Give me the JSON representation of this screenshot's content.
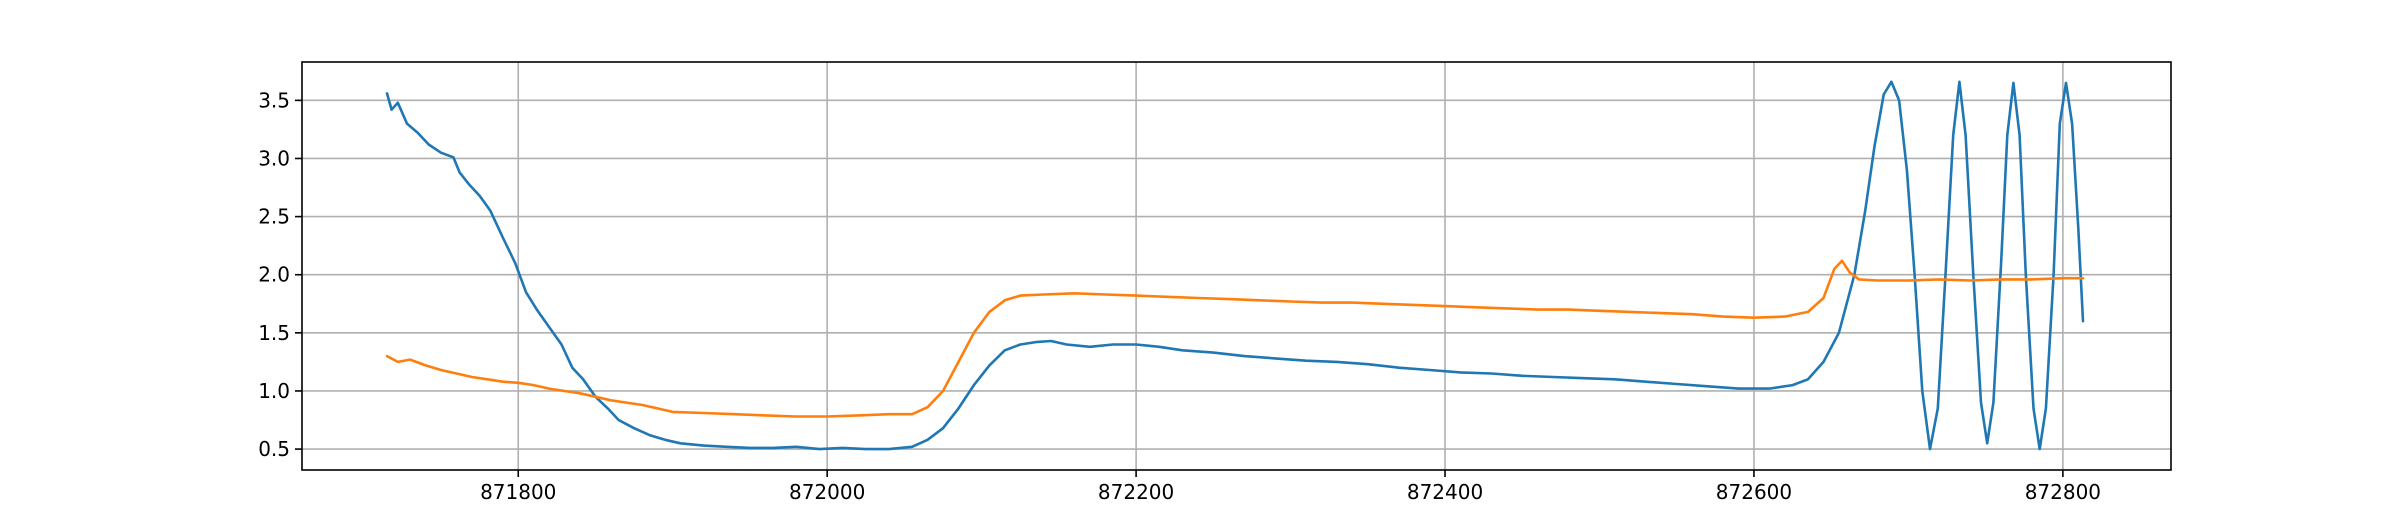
{
  "chart_data": {
    "type": "line",
    "title": "",
    "xlabel": "",
    "ylabel": "",
    "xlim": [
      871660,
      872870
    ],
    "ylim": [
      0.32,
      3.83
    ],
    "grid": true,
    "legend": "none",
    "x_ticks": [
      871800,
      872000,
      872200,
      872400,
      872600,
      872800
    ],
    "x_tick_labels": [
      "871800",
      "872000",
      "872200",
      "872400",
      "872600",
      "872800"
    ],
    "y_ticks": [
      0.5,
      1.0,
      1.5,
      2.0,
      2.5,
      3.0,
      3.5
    ],
    "y_tick_labels": [
      "0.5",
      "1.0",
      "1.5",
      "2.0",
      "2.5",
      "3.0",
      "3.5"
    ],
    "series": [
      {
        "color": "#1f77b4",
        "points": [
          [
            871715,
            3.56
          ],
          [
            871718,
            3.42
          ],
          [
            871722,
            3.48
          ],
          [
            871728,
            3.3
          ],
          [
            871735,
            3.22
          ],
          [
            871742,
            3.12
          ],
          [
            871750,
            3.05
          ],
          [
            871758,
            3.01
          ],
          [
            871762,
            2.88
          ],
          [
            871768,
            2.78
          ],
          [
            871775,
            2.68
          ],
          [
            871782,
            2.55
          ],
          [
            871790,
            2.32
          ],
          [
            871798,
            2.1
          ],
          [
            871805,
            1.85
          ],
          [
            871812,
            1.7
          ],
          [
            871820,
            1.55
          ],
          [
            871828,
            1.4
          ],
          [
            871835,
            1.2
          ],
          [
            871842,
            1.1
          ],
          [
            871850,
            0.95
          ],
          [
            871858,
            0.85
          ],
          [
            871865,
            0.75
          ],
          [
            871875,
            0.68
          ],
          [
            871885,
            0.62
          ],
          [
            871895,
            0.58
          ],
          [
            871905,
            0.55
          ],
          [
            871920,
            0.53
          ],
          [
            871935,
            0.52
          ],
          [
            871950,
            0.51
          ],
          [
            871965,
            0.51
          ],
          [
            871980,
            0.52
          ],
          [
            871995,
            0.5
          ],
          [
            872010,
            0.51
          ],
          [
            872025,
            0.5
          ],
          [
            872040,
            0.5
          ],
          [
            872055,
            0.52
          ],
          [
            872065,
            0.58
          ],
          [
            872075,
            0.68
          ],
          [
            872085,
            0.85
          ],
          [
            872095,
            1.05
          ],
          [
            872105,
            1.22
          ],
          [
            872115,
            1.35
          ],
          [
            872125,
            1.4
          ],
          [
            872135,
            1.42
          ],
          [
            872145,
            1.43
          ],
          [
            872155,
            1.4
          ],
          [
            872170,
            1.38
          ],
          [
            872185,
            1.4
          ],
          [
            872200,
            1.4
          ],
          [
            872215,
            1.38
          ],
          [
            872230,
            1.35
          ],
          [
            872250,
            1.33
          ],
          [
            872270,
            1.3
          ],
          [
            872290,
            1.28
          ],
          [
            872310,
            1.26
          ],
          [
            872330,
            1.25
          ],
          [
            872350,
            1.23
          ],
          [
            872370,
            1.2
          ],
          [
            872390,
            1.18
          ],
          [
            872410,
            1.16
          ],
          [
            872430,
            1.15
          ],
          [
            872450,
            1.13
          ],
          [
            872470,
            1.12
          ],
          [
            872490,
            1.11
          ],
          [
            872510,
            1.1
          ],
          [
            872530,
            1.08
          ],
          [
            872550,
            1.06
          ],
          [
            872570,
            1.04
          ],
          [
            872590,
            1.02
          ],
          [
            872610,
            1.02
          ],
          [
            872625,
            1.05
          ],
          [
            872635,
            1.1
          ],
          [
            872645,
            1.25
          ],
          [
            872655,
            1.5
          ],
          [
            872665,
            2.0
          ],
          [
            872672,
            2.55
          ],
          [
            872678,
            3.1
          ],
          [
            872684,
            3.55
          ],
          [
            872689,
            3.66
          ],
          [
            872694,
            3.5
          ],
          [
            872699,
            2.9
          ],
          [
            872704,
            2.0
          ],
          [
            872709,
            1.0
          ],
          [
            872714,
            0.5
          ],
          [
            872719,
            0.85
          ],
          [
            872724,
            2.0
          ],
          [
            872729,
            3.2
          ],
          [
            872733,
            3.66
          ],
          [
            872737,
            3.2
          ],
          [
            872742,
            2.0
          ],
          [
            872747,
            0.9
          ],
          [
            872751,
            0.55
          ],
          [
            872755,
            0.9
          ],
          [
            872760,
            2.1
          ],
          [
            872764,
            3.2
          ],
          [
            872768,
            3.65
          ],
          [
            872772,
            3.2
          ],
          [
            872776,
            2.0
          ],
          [
            872781,
            0.85
          ],
          [
            872785,
            0.5
          ],
          [
            872789,
            0.85
          ],
          [
            872794,
            2.0
          ],
          [
            872798,
            3.3
          ],
          [
            872802,
            3.65
          ],
          [
            872806,
            3.3
          ],
          [
            872810,
            2.4
          ],
          [
            872813,
            1.6
          ]
        ]
      },
      {
        "color": "#ff7f0e",
        "points": [
          [
            871715,
            1.3
          ],
          [
            871722,
            1.25
          ],
          [
            871730,
            1.27
          ],
          [
            871740,
            1.22
          ],
          [
            871750,
            1.18
          ],
          [
            871760,
            1.15
          ],
          [
            871770,
            1.12
          ],
          [
            871780,
            1.1
          ],
          [
            871790,
            1.08
          ],
          [
            871800,
            1.07
          ],
          [
            871810,
            1.05
          ],
          [
            871820,
            1.02
          ],
          [
            871830,
            1.0
          ],
          [
            871840,
            0.98
          ],
          [
            871850,
            0.95
          ],
          [
            871860,
            0.92
          ],
          [
            871870,
            0.9
          ],
          [
            871880,
            0.88
          ],
          [
            871890,
            0.85
          ],
          [
            871900,
            0.82
          ],
          [
            871920,
            0.81
          ],
          [
            871940,
            0.8
          ],
          [
            871960,
            0.79
          ],
          [
            871980,
            0.78
          ],
          [
            872000,
            0.78
          ],
          [
            872020,
            0.79
          ],
          [
            872040,
            0.8
          ],
          [
            872055,
            0.8
          ],
          [
            872065,
            0.86
          ],
          [
            872075,
            1.0
          ],
          [
            872085,
            1.25
          ],
          [
            872095,
            1.5
          ],
          [
            872105,
            1.68
          ],
          [
            872115,
            1.78
          ],
          [
            872125,
            1.82
          ],
          [
            872140,
            1.83
          ],
          [
            872160,
            1.84
          ],
          [
            872180,
            1.83
          ],
          [
            872200,
            1.82
          ],
          [
            872220,
            1.81
          ],
          [
            872240,
            1.8
          ],
          [
            872260,
            1.79
          ],
          [
            872280,
            1.78
          ],
          [
            872300,
            1.77
          ],
          [
            872320,
            1.76
          ],
          [
            872340,
            1.76
          ],
          [
            872360,
            1.75
          ],
          [
            872380,
            1.74
          ],
          [
            872400,
            1.73
          ],
          [
            872420,
            1.72
          ],
          [
            872440,
            1.71
          ],
          [
            872460,
            1.7
          ],
          [
            872480,
            1.7
          ],
          [
            872500,
            1.69
          ],
          [
            872520,
            1.68
          ],
          [
            872540,
            1.67
          ],
          [
            872560,
            1.66
          ],
          [
            872580,
            1.64
          ],
          [
            872600,
            1.63
          ],
          [
            872620,
            1.64
          ],
          [
            872635,
            1.68
          ],
          [
            872645,
            1.8
          ],
          [
            872652,
            2.05
          ],
          [
            872657,
            2.12
          ],
          [
            872662,
            2.02
          ],
          [
            872668,
            1.96
          ],
          [
            872680,
            1.95
          ],
          [
            872700,
            1.95
          ],
          [
            872720,
            1.96
          ],
          [
            872740,
            1.95
          ],
          [
            872760,
            1.96
          ],
          [
            872780,
            1.96
          ],
          [
            872800,
            1.97
          ],
          [
            872813,
            1.97
          ]
        ]
      }
    ]
  }
}
